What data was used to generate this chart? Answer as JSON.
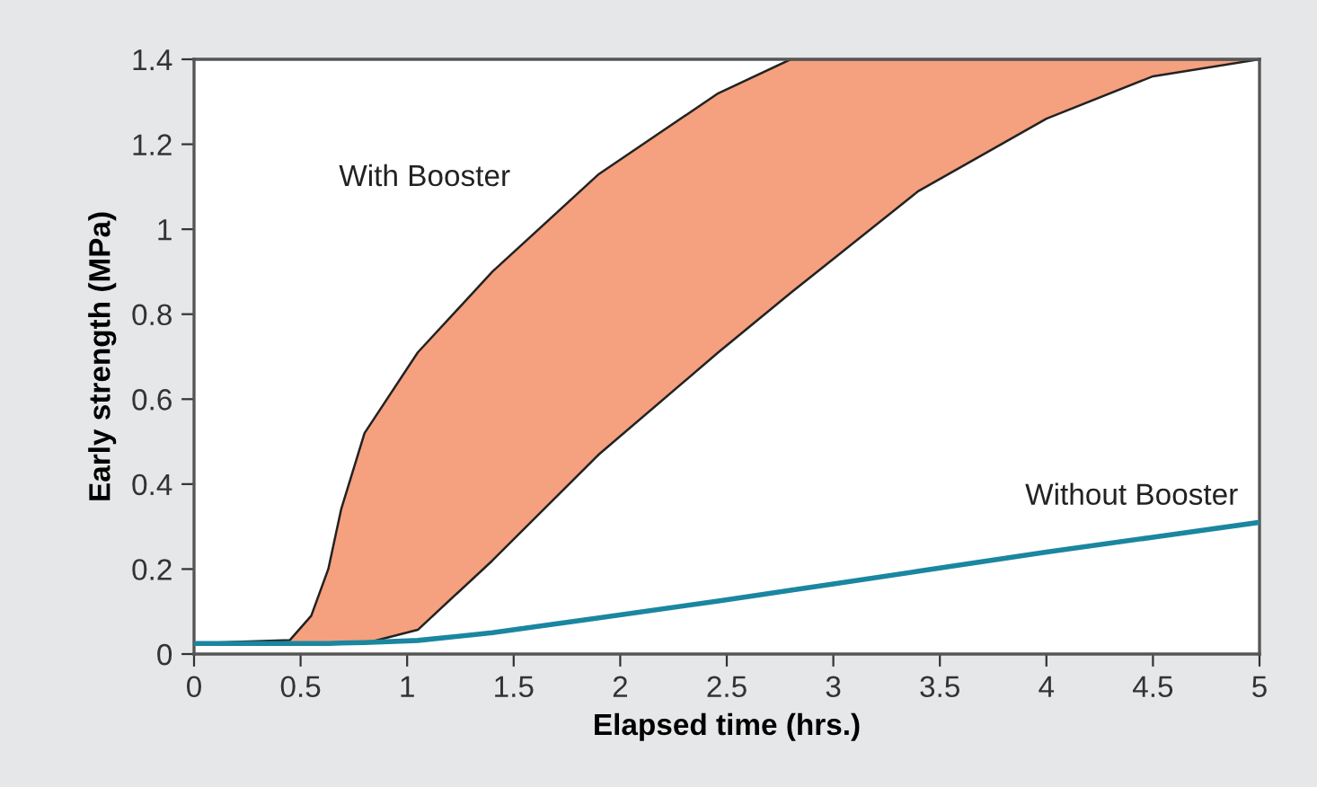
{
  "chart_data": {
    "type": "line",
    "xlabel": "Elapsed time (hrs.)",
    "ylabel": "Early strength (MPa)",
    "x": [
      0,
      0.45,
      0.55,
      0.63,
      0.69,
      0.8,
      1.05,
      1.4,
      1.9,
      2.46,
      2.8,
      3,
      3.4,
      4,
      4.5,
      5
    ],
    "series": [
      {
        "name": "With Booster",
        "color": "#222222",
        "values": [
          0.025,
          0.033,
          0.09,
          0.2,
          0.34,
          0.52,
          0.71,
          0.9,
          1.13,
          1.32,
          1.4,
          1.4,
          1.4,
          1.4,
          1.4,
          1.4
        ],
        "lower": [
          0.025,
          0.025,
          0.025,
          0.025,
          0.025,
          0.025,
          0.057,
          0.22,
          0.47,
          0.71,
          0.85,
          0.93,
          1.09,
          1.26,
          1.36,
          1.4
        ],
        "upper": [
          0.025,
          0.033,
          0.09,
          0.2,
          0.34,
          0.52,
          0.71,
          0.9,
          1.13,
          1.32,
          1.4,
          1.4,
          1.4,
          1.4,
          1.4,
          1.4
        ]
      },
      {
        "name": "Without Booster",
        "type": "line",
        "color": "#1a86a0",
        "values": [
          0.025,
          0.025,
          0.025,
          0.025,
          0.026,
          0.027,
          0.032,
          0.05,
          0.085,
          0.125,
          0.15,
          0.165,
          0.195,
          0.24,
          0.275,
          0.31
        ]
      }
    ],
    "xlim": [
      0,
      5
    ],
    "xticks": [
      0,
      0.5,
      1,
      1.5,
      2,
      2.5,
      3,
      3.5,
      4,
      4.5,
      5
    ],
    "ylim": [
      0,
      1.4
    ],
    "yticks": [
      0,
      0.2,
      0.4,
      0.6,
      0.8,
      1,
      1.2,
      1.4
    ],
    "grid": false,
    "legend": false
  }
}
